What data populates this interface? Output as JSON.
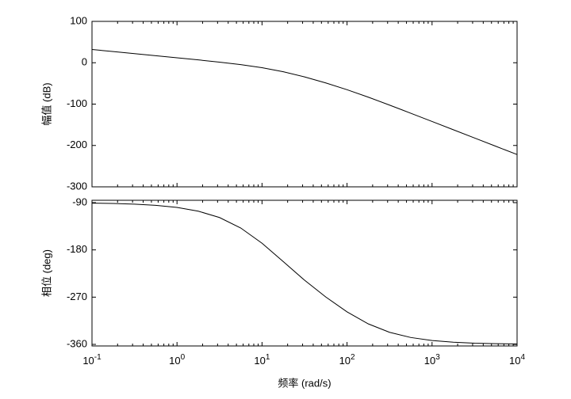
{
  "chart_data": [
    {
      "type": "line",
      "ylabel": "幅值 (dB)",
      "log_x": true,
      "x": [
        0.1,
        0.178,
        0.316,
        0.562,
        1,
        1.78,
        3.16,
        5.62,
        10,
        17.8,
        31.6,
        56.2,
        100,
        178,
        316,
        562,
        1000,
        1778,
        3162,
        5623,
        10000
      ],
      "series": [
        {
          "color": "#000000",
          "values": [
            32.04,
            27.04,
            22.04,
            17.04,
            11.99,
            6.87,
            1.52,
            -4.49,
            -11.98,
            -21.82,
            -34.22,
            -48.78,
            -65.16,
            -83.19,
            -102.37,
            -122.09,
            -142.0,
            -161.97,
            -181.96,
            -201.96,
            -221.96
          ]
        }
      ],
      "xlim": [
        0.1,
        10000
      ],
      "xticks": [
        0.1,
        1,
        10,
        100,
        1000,
        10000
      ],
      "ylim": [
        -300,
        100
      ],
      "yticks": [
        100,
        0,
        -100,
        -200,
        -300
      ]
    },
    {
      "type": "line",
      "ylabel": "相位 (deg)",
      "xlabel": "频率  (rad/s)",
      "log_x": true,
      "x": [
        0.1,
        0.178,
        0.316,
        0.562,
        1,
        1.78,
        3.16,
        5.62,
        10,
        17.8,
        31.6,
        56.2,
        100,
        178,
        316,
        562,
        1000,
        1778,
        3162,
        5623,
        10000
      ],
      "series": [
        {
          "color": "#000000",
          "values": [
            -90.9,
            -91.6,
            -92.9,
            -95.2,
            -99.1,
            -106.2,
            -118.3,
            -138.3,
            -167.3,
            -202.4,
            -237.7,
            -269.7,
            -298.0,
            -321.0,
            -337.0,
            -346.9,
            -352.6,
            -355.8,
            -357.7,
            -358.7,
            -359.3
          ]
        }
      ],
      "xlim": [
        0.1,
        10000
      ],
      "xticks": [
        {
          "value": 0.1,
          "label": "10",
          "exponent": "-1"
        },
        {
          "value": 1,
          "label": "10",
          "exponent": "0"
        },
        {
          "value": 10,
          "label": "10",
          "exponent": "1"
        },
        {
          "value": 100,
          "label": "10",
          "exponent": "2"
        },
        {
          "value": 1000,
          "label": "10",
          "exponent": "3"
        },
        {
          "value": 10000,
          "label": "10",
          "exponent": "4"
        }
      ],
      "ylim": [
        -363,
        -85.5
      ],
      "yticks": [
        -90,
        -180,
        -270,
        -360
      ]
    }
  ]
}
